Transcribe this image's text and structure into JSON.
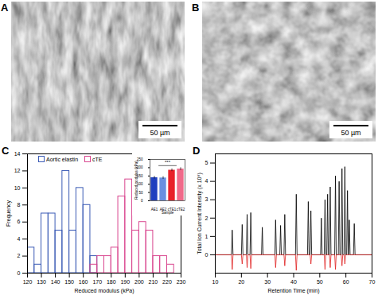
{
  "panel_labels": [
    "A",
    "B",
    "C",
    "D"
  ],
  "images": [
    {
      "panel": "A",
      "scale_bar": "50 µm"
    },
    {
      "panel": "B",
      "scale_bar": "50 µm"
    }
  ],
  "chart_data": [
    {
      "type": "histogram",
      "x_label": "Reduced modulus (kPa)",
      "y_label": "Frequency",
      "xlim": [
        120,
        230
      ],
      "xticks": [
        120,
        130,
        140,
        150,
        160,
        170,
        180,
        190,
        200,
        210,
        220,
        230
      ],
      "ylim": [
        0,
        14
      ],
      "yticks": [
        0,
        2,
        4,
        6,
        8,
        10,
        12,
        14
      ],
      "legend": "top",
      "series": [
        {
          "name": "Aortic elastin",
          "color": "#3b5bb5",
          "bins": [
            120,
            125,
            130,
            135,
            140,
            145,
            150,
            155,
            160,
            165,
            170
          ],
          "counts": [
            3,
            1,
            7,
            7,
            5,
            12,
            5,
            10,
            8,
            2
          ]
        },
        {
          "name": "cTE",
          "color": "#d9468f",
          "bins": [
            165,
            170,
            175,
            180,
            185,
            190,
            195,
            200,
            205,
            210,
            215,
            220,
            225
          ],
          "counts": [
            1,
            2,
            2,
            3,
            9,
            11,
            5,
            6,
            5,
            2,
            2,
            1
          ]
        }
      ]
    },
    {
      "type": "bar",
      "x_label": "Sample",
      "y_label": "Reduced modulus (kPa)",
      "categories": [
        "AE1",
        "AE2",
        "cTE1",
        "cTE2"
      ],
      "values": [
        140,
        138,
        185,
        192
      ],
      "errors": [
        8,
        8,
        8,
        8
      ],
      "colors": [
        "#1f3fbf",
        "#6a8fe0",
        "#e8202a",
        "#f06a8a"
      ],
      "ylim": [
        0,
        250
      ],
      "yticks": [
        0,
        50,
        100,
        150,
        200,
        250
      ],
      "annotations": [
        "***"
      ]
    },
    {
      "type": "line",
      "x_label": "Retention Time (min)",
      "y_label": "Total Ion Current Intensity (x 10⁸)",
      "xlim": [
        10,
        70
      ],
      "xticks": [
        10,
        20,
        30,
        40,
        50,
        60,
        70
      ],
      "ylim": [
        -1,
        5.5
      ],
      "yticks": [
        0,
        1,
        2,
        3,
        4,
        5
      ],
      "series": [
        {
          "color": "#000000",
          "x": [
            10,
            16.2,
            16.5,
            16.8,
            20,
            20.3,
            20.6,
            21.9,
            22.2,
            22.5,
            23.3,
            23.6,
            23.9,
            27.7,
            28,
            28.3,
            32.8,
            33.1,
            33.4,
            34.7,
            35,
            35.3,
            36.3,
            36.6,
            36.9,
            40.7,
            41,
            41.3,
            45.3,
            45.6,
            45.9,
            46.3,
            46.6,
            46.9,
            50.3,
            50.6,
            50.9,
            51.7,
            52,
            52.3,
            52.7,
            53,
            53.3,
            53.7,
            54,
            54.3,
            55.7,
            56,
            56.3,
            57.1,
            57.4,
            57.7,
            58.2,
            58.5,
            58.8,
            59.3,
            59.6,
            59.9,
            60.3,
            60.6,
            60.9,
            61.0,
            61.3,
            61.6,
            62.9,
            63.2,
            63.5,
            70
          ],
          "values": [
            0,
            0,
            1.35,
            0,
            0,
            1.65,
            0,
            0,
            2.2,
            0,
            0,
            2.3,
            0,
            0,
            1.5,
            0,
            0,
            1.9,
            0,
            0,
            1.6,
            0,
            0,
            2.2,
            0,
            0,
            3.3,
            0,
            0,
            2.9,
            0,
            0,
            2.4,
            0,
            0,
            2.0,
            0,
            0,
            3.0,
            0,
            0,
            3.3,
            0,
            0,
            3.7,
            0,
            0,
            4.3,
            0,
            0,
            4.0,
            0,
            0,
            4.7,
            0,
            0,
            4.8,
            0,
            0,
            3.5,
            0,
            0,
            1.9,
            0,
            0,
            1.7,
            0,
            0
          ]
        },
        {
          "color": "#e02020",
          "x": [
            10,
            16.2,
            16.5,
            16.8,
            20,
            20.3,
            20.6,
            21.9,
            22.2,
            22.5,
            23.3,
            23.6,
            23.9,
            32.8,
            33.1,
            33.4,
            36.3,
            36.6,
            36.9,
            40.7,
            41,
            41.3,
            46.3,
            46.6,
            46.9,
            51.7,
            52,
            52.3,
            53.7,
            54,
            54.3,
            55.7,
            56,
            56.3,
            58.2,
            58.5,
            58.8,
            59.3,
            59.6,
            59.9,
            70
          ],
          "values": [
            0,
            0,
            -0.8,
            0,
            0,
            -0.5,
            0,
            0,
            -0.7,
            0,
            0,
            -0.75,
            0,
            0,
            -0.7,
            0,
            0,
            -0.6,
            0,
            0,
            -0.85,
            0,
            0,
            -0.5,
            0,
            0,
            -0.8,
            0,
            0,
            -0.7,
            0,
            0,
            -0.8,
            0,
            0,
            -0.6,
            0,
            0,
            -0.5,
            0,
            0
          ]
        }
      ]
    }
  ]
}
